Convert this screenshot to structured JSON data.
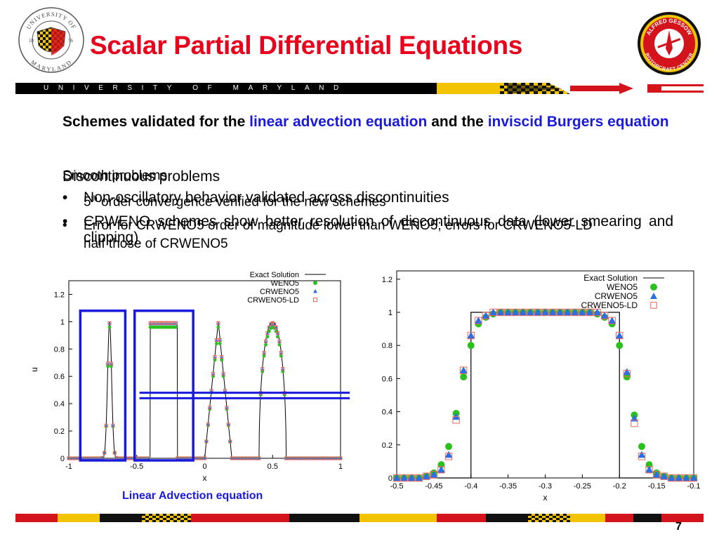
{
  "slide": {
    "title": "Scalar Partial Differential Equations",
    "university_banner": "UNIVERSITY OF MARYLAND",
    "page_number": "7"
  },
  "logos": {
    "left": {
      "icon": "university-seal-icon",
      "ring_top": "UNIVERSITY OF",
      "ring_bottom": "MARYLAND",
      "year_left": "18",
      "year_right": "56"
    },
    "right": {
      "icon": "rotorcraft-center-logo-icon",
      "ring_top": "ALFRED GESSOW",
      "ring_bottom": "ROTORCRAFT CENTER"
    }
  },
  "body": {
    "intro_1": "Schemes validated for the",
    "intro_linear": "linear advection equation",
    "intro_and": "and the",
    "intro_burgers": "inviscid Burgers equation",
    "smooth": {
      "heading": "Smooth problems",
      "bullet1_superscript": "th",
      "bullet1_num": "5",
      "bullet1_rest": " order convergence verified for the new schemes",
      "bullet2": "Error for CRWENO5 order of magnitude lower than WENO5; errors for CRWENO5-LD half those of CRWENO5"
    },
    "discontinuous": {
      "heading": "Discontinuous problems",
      "bullet1": "Non-oscillatory behavior validated across discontinuities",
      "bullet2": "CRWENO schemes show better resolution of discontinuous data (lower smearing and clipping)"
    }
  },
  "colors": {
    "title_red": "#e8001c",
    "link_blue": "#1a1adc",
    "weno5": "#2ac01e",
    "crweno5": "#2a6fe6",
    "crweno5_ld": "#e8665a"
  },
  "chart_data": [
    {
      "type": "scatter",
      "caption": "Linear Advection equation",
      "xlabel": "x",
      "ylabel": "u",
      "xlim": [
        -1,
        1
      ],
      "ylim": [
        0,
        1.3
      ],
      "xticks": [
        "-1",
        "-0.5",
        "0",
        "0.5",
        "1"
      ],
      "yticks": [
        "0",
        "0.2",
        "0.4",
        "0.6",
        "0.8",
        "1",
        "1.2"
      ],
      "legend_position": "top-right",
      "series": [
        {
          "name": "Exact Solution",
          "style": "line"
        },
        {
          "name": "WENO5",
          "style": "circle"
        },
        {
          "name": "CRWENO5",
          "style": "triangle"
        },
        {
          "name": "CRWENO5-LD",
          "style": "square"
        }
      ],
      "profiles": [
        {
          "shape": "gaussian",
          "center": -0.7,
          "width": 0.05,
          "peak": 1.0
        },
        {
          "shape": "square",
          "left": -0.4,
          "right": -0.2,
          "peak": 1.0
        },
        {
          "shape": "triangle",
          "center": 0.1,
          "halfwidth": 0.1,
          "peak": 1.0
        },
        {
          "shape": "ellipse",
          "center": 0.5,
          "halfwidth": 0.1,
          "peak": 1.0
        }
      ],
      "highlight_x_ranges": [
        [
          -0.9,
          -0.6
        ],
        [
          -0.5,
          -0.1
        ]
      ]
    },
    {
      "type": "scatter",
      "xlabel": "x",
      "ylabel": "u",
      "xlim": [
        -0.5,
        -0.1
      ],
      "ylim": [
        0,
        1.25
      ],
      "xticks": [
        "-0.5",
        "-0.45",
        "-0.4",
        "-0.35",
        "-0.3",
        "-0.25",
        "-0.2",
        "-0.15",
        "-0.1"
      ],
      "yticks": [
        "0",
        "0.2",
        "0.4",
        "0.6",
        "0.8",
        "1",
        "1.2"
      ],
      "legend_position": "top-right",
      "exact": {
        "left": -0.4,
        "right": -0.2,
        "peak": 1.0
      },
      "x": [
        -0.5,
        -0.49,
        -0.48,
        -0.47,
        -0.46,
        -0.45,
        -0.44,
        -0.43,
        -0.42,
        -0.41,
        -0.4,
        -0.39,
        -0.38,
        -0.37,
        -0.36,
        -0.35,
        -0.34,
        -0.33,
        -0.32,
        -0.31,
        -0.3,
        -0.29,
        -0.28,
        -0.27,
        -0.26,
        -0.25,
        -0.24,
        -0.23,
        -0.22,
        -0.21,
        -0.2,
        -0.19,
        -0.18,
        -0.17,
        -0.16,
        -0.15,
        -0.14,
        -0.13,
        -0.12,
        -0.11,
        -0.1
      ],
      "series": [
        {
          "name": "Exact Solution",
          "style": "line"
        },
        {
          "name": "WENO5",
          "style": "circle",
          "values": [
            0,
            0,
            0,
            0,
            0.01,
            0.03,
            0.08,
            0.19,
            0.39,
            0.61,
            0.8,
            0.93,
            0.97,
            0.99,
            1.0,
            1.0,
            1.0,
            1.0,
            1.0,
            1.0,
            1.0,
            1.0,
            1.0,
            1.0,
            1.0,
            1.0,
            1.0,
            0.99,
            0.97,
            0.93,
            0.8,
            0.61,
            0.38,
            0.19,
            0.08,
            0.03,
            0.01,
            0,
            0,
            0,
            0
          ]
        },
        {
          "name": "CRWENO5",
          "style": "triangle",
          "values": [
            0,
            0,
            0,
            0,
            0.01,
            0.02,
            0.05,
            0.14,
            0.37,
            0.65,
            0.86,
            0.95,
            0.98,
            1.0,
            1.0,
            1.0,
            1.0,
            1.0,
            1.0,
            1.0,
            1.0,
            1.0,
            1.0,
            1.0,
            1.0,
            1.0,
            1.0,
            1.0,
            0.98,
            0.95,
            0.86,
            0.64,
            0.36,
            0.14,
            0.05,
            0.02,
            0.01,
            0,
            0,
            0,
            0
          ]
        },
        {
          "name": "CRWENO5-LD",
          "style": "square",
          "values": [
            0,
            0,
            0,
            0,
            0.01,
            0.02,
            0.05,
            0.13,
            0.35,
            0.65,
            0.86,
            0.95,
            0.98,
            1.0,
            1.0,
            1.0,
            1.0,
            1.0,
            1.0,
            1.0,
            1.0,
            1.0,
            1.0,
            1.0,
            1.0,
            1.0,
            1.0,
            1.0,
            0.98,
            0.95,
            0.86,
            0.63,
            0.33,
            0.13,
            0.05,
            0.02,
            0.01,
            0,
            0,
            0,
            0
          ]
        }
      ]
    }
  ]
}
